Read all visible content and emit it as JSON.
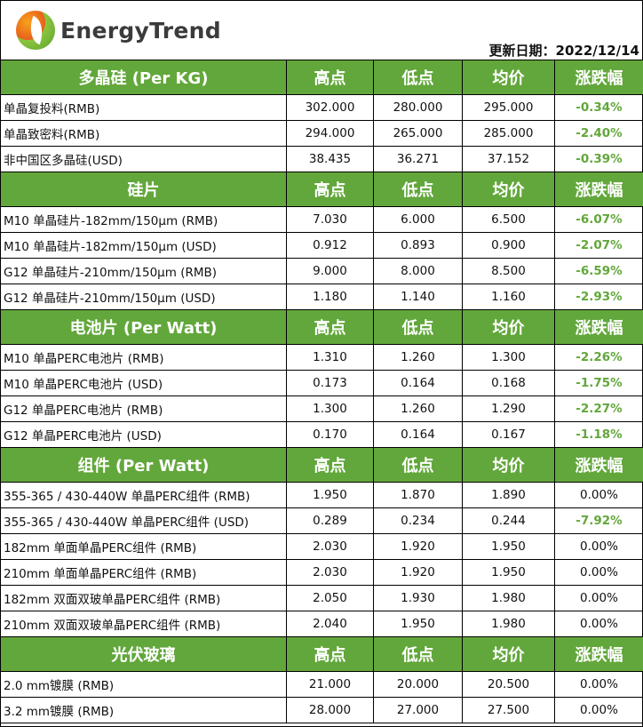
{
  "brand": {
    "name": "EnergyTrend",
    "accent": "#62a73b"
  },
  "update_date": "更新日期：2022/12/14",
  "columns": [
    "高点",
    "低点",
    "均价",
    "涨跌幅"
  ],
  "sections": [
    {
      "title": "多晶硅 (Per KG)",
      "rows": [
        [
          "单晶复投料(RMB)",
          "302.000",
          "280.000",
          "295.000",
          "-0.34%"
        ],
        [
          "单晶致密料(RMB)",
          "294.000",
          "265.000",
          "285.000",
          "-2.40%"
        ],
        [
          "非中国区多晶硅(USD)",
          "38.435",
          "36.271",
          "37.152",
          "-0.39%"
        ]
      ]
    },
    {
      "title": "硅片",
      "rows": [
        [
          "M10 单晶硅片-182mm/150μm (RMB)",
          "7.030",
          "6.000",
          "6.500",
          "-6.07%"
        ],
        [
          "M10 单晶硅片-182mm/150μm (USD)",
          "0.912",
          "0.893",
          "0.900",
          "-2.07%"
        ],
        [
          "G12 单晶硅片-210mm/150μm  (RMB)",
          "9.000",
          "8.000",
          "8.500",
          "-6.59%"
        ],
        [
          "G12 单晶硅片-210mm/150μm  (USD)",
          "1.180",
          "1.140",
          "1.160",
          "-2.93%"
        ]
      ]
    },
    {
      "title": "电池片 (Per Watt)",
      "rows": [
        [
          "M10 单晶PERC电池片 (RMB)",
          "1.310",
          "1.260",
          "1.300",
          "-2.26%"
        ],
        [
          "M10 单晶PERC电池片 (USD)",
          "0.173",
          "0.164",
          "0.168",
          "-1.75%"
        ],
        [
          "G12 单晶PERC电池片 (RMB)",
          "1.300",
          "1.260",
          "1.290",
          "-2.27%"
        ],
        [
          "G12 单晶PERC电池片 (USD)",
          "0.170",
          "0.164",
          "0.167",
          "-1.18%"
        ]
      ]
    },
    {
      "title": "组件 (Per Watt)",
      "rows": [
        [
          "355-365 / 430-440W 单晶PERC组件 (RMB)",
          "1.950",
          "1.870",
          "1.890",
          "0.00%"
        ],
        [
          "355-365 / 430-440W 单晶PERC组件 (USD)",
          "0.289",
          "0.234",
          "0.244",
          "-7.92%"
        ],
        [
          "182mm 单面单晶PERC组件 (RMB)",
          "2.030",
          "1.920",
          "1.950",
          "0.00%"
        ],
        [
          "210mm 单面单晶PERC组件 (RMB)",
          "2.030",
          "1.920",
          "1.950",
          "0.00%"
        ],
        [
          "182mm 双面双玻单晶PERC组件 (RMB)",
          "2.050",
          "1.930",
          "1.980",
          "0.00%"
        ],
        [
          "210mm 双面双玻单晶PERC组件 (RMB)",
          "2.040",
          "1.950",
          "1.980",
          "0.00%"
        ]
      ]
    },
    {
      "title": "光伏玻璃",
      "rows": [
        [
          "2.0 mm镀膜 (RMB)",
          "21.000",
          "20.000",
          "20.500",
          "0.00%"
        ],
        [
          "3.2 mm镀膜 (RMB)",
          "28.000",
          "27.000",
          "27.500",
          "0.00%"
        ]
      ]
    }
  ]
}
